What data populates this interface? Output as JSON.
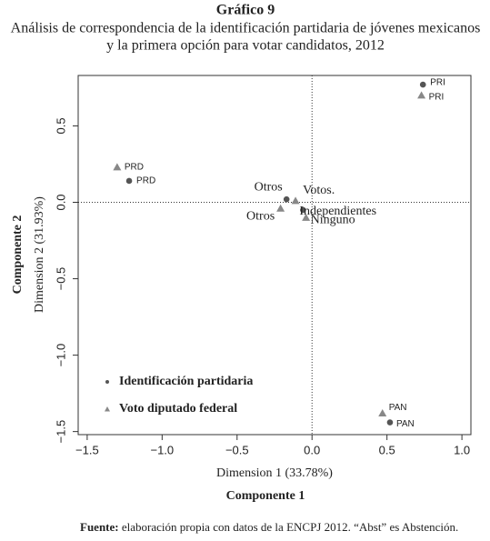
{
  "title": "Gráfico 9",
  "subtitle": [
    "Análisis de correspondencia de la identificación partidaria de jóvenes mexicanos",
    "y la primera opción para votar candidatos, 2012"
  ],
  "chart_data": {
    "type": "scatter",
    "x_label": "Dimension 1 (33.78%)",
    "x_title": "Componente 1",
    "y_label": "Dimension 2 (31.93%)",
    "y_title": "Componente 2",
    "xlim": [
      -1.56,
      1.06
    ],
    "ylim": [
      -1.52,
      0.83
    ],
    "xticks": [
      {
        "value": -1.5,
        "label": "−1.5"
      },
      {
        "value": -1.0,
        "label": "−1.0"
      },
      {
        "value": -0.5,
        "label": "−0.5"
      },
      {
        "value": 0,
        "label": "0.0"
      },
      0.5,
      {
        "value": 1.0,
        "label": "1.0"
      }
    ],
    "yticks": [
      {
        "value": -1.5,
        "label": "−1.5"
      },
      {
        "value": -1.0,
        "label": "−1.0"
      },
      {
        "value": -0.5,
        "label": "−0.5"
      },
      {
        "value": 0,
        "label": "0.0"
      },
      0.5
    ],
    "series": [
      {
        "name": "Identificación partidaria",
        "marker": "circle",
        "color": "#555555",
        "labels": [
          "PRI",
          "PRD",
          "Otros",
          "Independientes",
          "PAN"
        ],
        "x": [
          0.74,
          -1.22,
          -0.17,
          -0.06,
          0.52
        ],
        "values": [
          0.77,
          0.14,
          0.02,
          -0.05,
          -1.44
        ]
      },
      {
        "name": "Voto diputado federal",
        "marker": "triangle",
        "color": "#888888",
        "labels": [
          "PRI",
          "PRD",
          "Votos.",
          "Otros",
          "Ninguno",
          "PAN"
        ],
        "x": [
          0.73,
          -1.3,
          -0.11,
          -0.21,
          -0.04,
          0.47
        ],
        "values": [
          0.7,
          0.23,
          0.01,
          -0.04,
          -0.1,
          -1.38
        ]
      }
    ]
  },
  "footnote": {
    "label": "Fuente:",
    "text": "elaboración propia con datos de la ENCPJ 2012. “Abst” es Abstención."
  }
}
